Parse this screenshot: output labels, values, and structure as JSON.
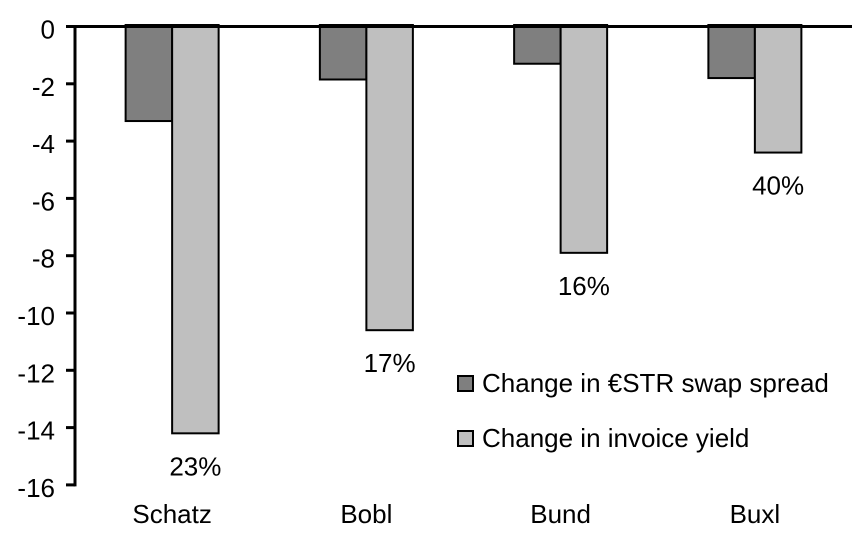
{
  "chart_data": {
    "type": "bar",
    "title": "",
    "xlabel": "",
    "ylabel": "",
    "categories": [
      "Schatz",
      "Bobl",
      "Bund",
      "Buxl"
    ],
    "series": [
      {
        "name": "Change in €STR swap spread",
        "color": "#7F7F7F",
        "values": [
          -3.3,
          -1.85,
          -1.3,
          -1.8
        ]
      },
      {
        "name": "Change in invoice yield",
        "color": "#BFBFBF",
        "values": [
          -14.2,
          -10.6,
          -7.9,
          -4.4
        ]
      }
    ],
    "bar_labels": {
      "series_index": 1,
      "values": [
        "23%",
        "17%",
        "16%",
        "40%"
      ]
    },
    "y_ticks": [
      "0",
      "-2",
      "-4",
      "-6",
      "-8",
      "-10",
      "-12",
      "-14",
      "-16"
    ],
    "y_tick_values": [
      0,
      -2,
      -4,
      -6,
      -8,
      -10,
      -12,
      -14,
      -16
    ],
    "ylim": [
      -16,
      0
    ],
    "grid": false,
    "legend_position": "inside-right-lower",
    "colors": {
      "bar_border": "#000000",
      "axis": "#000000",
      "text": "#000000",
      "background": "#FFFFFF"
    }
  }
}
